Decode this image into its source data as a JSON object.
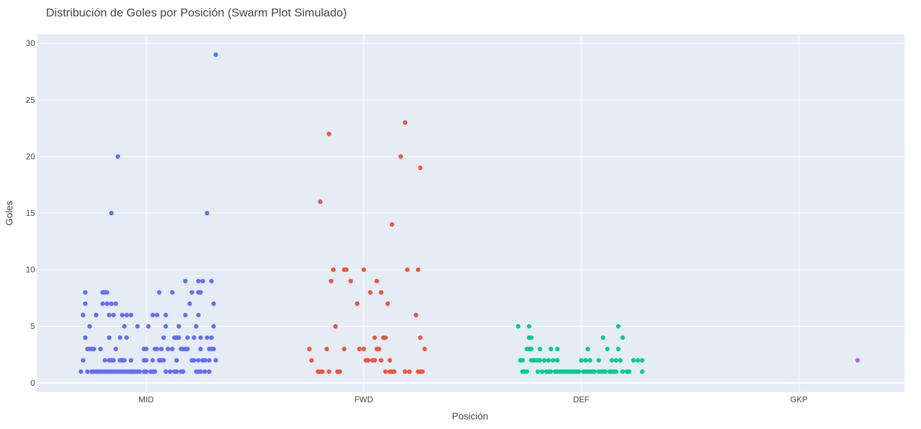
{
  "chart_data": {
    "type": "scatter",
    "title": "Distribución de Goles por Posición (Swarm Plot Simulado)",
    "xlabel": "Posición",
    "ylabel": "Goles",
    "categories": [
      "MID",
      "FWD",
      "DEF",
      "GKP"
    ],
    "ylim": [
      -0.8,
      30.8
    ],
    "yticks": [
      0,
      5,
      10,
      15,
      20,
      25,
      30
    ],
    "grid": true,
    "colors": {
      "MID": "#636efa",
      "FWD": "#ef553b",
      "DEF": "#00cc96",
      "GKP": "#ab63fa",
      "plot_bg": "#e5ecf6",
      "grid": "#ffffff"
    },
    "series": [
      {
        "name": "MID",
        "points": [
          [
            -0.3,
            1
          ],
          [
            -0.29,
            2
          ],
          [
            -0.29,
            6
          ],
          [
            -0.28,
            4
          ],
          [
            -0.28,
            7
          ],
          [
            -0.28,
            8
          ],
          [
            -0.27,
            3
          ],
          [
            -0.27,
            1
          ],
          [
            -0.26,
            5
          ],
          [
            -0.26,
            3
          ],
          [
            -0.25,
            1
          ],
          [
            -0.25,
            3
          ],
          [
            -0.24,
            3
          ],
          [
            -0.24,
            1
          ],
          [
            -0.23,
            6
          ],
          [
            -0.23,
            1
          ],
          [
            -0.22,
            1
          ],
          [
            -0.22,
            1
          ],
          [
            -0.21,
            1
          ],
          [
            -0.21,
            3
          ],
          [
            -0.2,
            8
          ],
          [
            -0.2,
            7
          ],
          [
            -0.2,
            1
          ],
          [
            -0.19,
            2
          ],
          [
            -0.19,
            1
          ],
          [
            -0.19,
            8
          ],
          [
            -0.18,
            8
          ],
          [
            -0.18,
            7
          ],
          [
            -0.18,
            1
          ],
          [
            -0.17,
            1
          ],
          [
            -0.17,
            2
          ],
          [
            -0.17,
            4
          ],
          [
            -0.17,
            6
          ],
          [
            -0.16,
            15
          ],
          [
            -0.16,
            7
          ],
          [
            -0.16,
            1
          ],
          [
            -0.16,
            2
          ],
          [
            -0.15,
            1
          ],
          [
            -0.15,
            6
          ],
          [
            -0.15,
            2
          ],
          [
            -0.14,
            7
          ],
          [
            -0.14,
            1
          ],
          [
            -0.14,
            3
          ],
          [
            -0.13,
            20
          ],
          [
            -0.13,
            1
          ],
          [
            -0.12,
            2
          ],
          [
            -0.12,
            4
          ],
          [
            -0.12,
            2
          ],
          [
            -0.12,
            1
          ],
          [
            -0.11,
            2
          ],
          [
            -0.11,
            1
          ],
          [
            -0.11,
            6
          ],
          [
            -0.11,
            2
          ],
          [
            -0.1,
            5
          ],
          [
            -0.1,
            1
          ],
          [
            -0.1,
            2
          ],
          [
            -0.09,
            1
          ],
          [
            -0.09,
            6
          ],
          [
            -0.09,
            4
          ],
          [
            -0.08,
            1
          ],
          [
            -0.07,
            1
          ],
          [
            -0.07,
            6
          ],
          [
            -0.07,
            2
          ],
          [
            -0.07,
            1
          ],
          [
            -0.06,
            1
          ],
          [
            -0.06,
            1
          ],
          [
            -0.05,
            1
          ],
          [
            -0.04,
            5
          ],
          [
            -0.04,
            1
          ],
          [
            -0.03,
            1
          ],
          [
            -0.01,
            1
          ],
          [
            -0.01,
            3
          ],
          [
            -0.01,
            2
          ],
          [
            0.0,
            1
          ],
          [
            0.0,
            2
          ],
          [
            0.0,
            3
          ],
          [
            0.01,
            5
          ],
          [
            0.02,
            1
          ],
          [
            0.03,
            6
          ],
          [
            0.03,
            2
          ],
          [
            0.03,
            1
          ],
          [
            0.04,
            3
          ],
          [
            0.04,
            1
          ],
          [
            0.05,
            3
          ],
          [
            0.05,
            6
          ],
          [
            0.06,
            2
          ],
          [
            0.06,
            8
          ],
          [
            0.06,
            2
          ],
          [
            0.07,
            3
          ],
          [
            0.07,
            2
          ],
          [
            0.08,
            4
          ],
          [
            0.08,
            2
          ],
          [
            0.09,
            1
          ],
          [
            0.09,
            6
          ],
          [
            0.09,
            5
          ],
          [
            0.1,
            3
          ],
          [
            0.11,
            1
          ],
          [
            0.12,
            8
          ],
          [
            0.12,
            3
          ],
          [
            0.13,
            4
          ],
          [
            0.13,
            1
          ],
          [
            0.14,
            1
          ],
          [
            0.14,
            2
          ],
          [
            0.14,
            2
          ],
          [
            0.14,
            4
          ],
          [
            0.15,
            5
          ],
          [
            0.15,
            4
          ],
          [
            0.16,
            3
          ],
          [
            0.16,
            1
          ],
          [
            0.17,
            1
          ],
          [
            0.17,
            3
          ],
          [
            0.18,
            3
          ],
          [
            0.18,
            9
          ],
          [
            0.18,
            6
          ],
          [
            0.19,
            4
          ],
          [
            0.19,
            3
          ],
          [
            0.2,
            7
          ],
          [
            0.21,
            8
          ],
          [
            0.21,
            2
          ],
          [
            0.22,
            4
          ],
          [
            0.22,
            2
          ],
          [
            0.23,
            1
          ],
          [
            0.23,
            5
          ],
          [
            0.24,
            9
          ],
          [
            0.24,
            8
          ],
          [
            0.24,
            1
          ],
          [
            0.24,
            2
          ],
          [
            0.24,
            6
          ],
          [
            0.25,
            8
          ],
          [
            0.25,
            1
          ],
          [
            0.25,
            4
          ],
          [
            0.25,
            3
          ],
          [
            0.26,
            2
          ],
          [
            0.26,
            9
          ],
          [
            0.27,
            1
          ],
          [
            0.27,
            2
          ],
          [
            0.27,
            2
          ],
          [
            0.28,
            15
          ],
          [
            0.28,
            4
          ],
          [
            0.29,
            1
          ],
          [
            0.29,
            3
          ],
          [
            0.29,
            2
          ],
          [
            0.3,
            9
          ],
          [
            0.3,
            3
          ],
          [
            0.3,
            4
          ],
          [
            0.31,
            7
          ],
          [
            0.31,
            5
          ],
          [
            0.31,
            3
          ],
          [
            0.32,
            29
          ],
          [
            0.32,
            2
          ]
        ]
      },
      {
        "name": "FWD",
        "points": [
          [
            -0.25,
            3
          ],
          [
            -0.24,
            2
          ],
          [
            -0.21,
            1
          ],
          [
            -0.2,
            16
          ],
          [
            -0.2,
            1
          ],
          [
            -0.19,
            1
          ],
          [
            -0.17,
            3
          ],
          [
            -0.16,
            1
          ],
          [
            -0.16,
            22
          ],
          [
            -0.15,
            9
          ],
          [
            -0.15,
            9
          ],
          [
            -0.14,
            10
          ],
          [
            -0.13,
            5
          ],
          [
            -0.12,
            1
          ],
          [
            -0.12,
            1
          ],
          [
            -0.11,
            1
          ],
          [
            -0.09,
            3
          ],
          [
            -0.09,
            10
          ],
          [
            -0.08,
            10
          ],
          [
            -0.06,
            9
          ],
          [
            -0.03,
            7
          ],
          [
            -0.02,
            3
          ],
          [
            0.0,
            10
          ],
          [
            0.0,
            3
          ],
          [
            0.01,
            2
          ],
          [
            0.02,
            2
          ],
          [
            0.03,
            8
          ],
          [
            0.04,
            2
          ],
          [
            0.05,
            2
          ],
          [
            0.05,
            4
          ],
          [
            0.06,
            3
          ],
          [
            0.06,
            9
          ],
          [
            0.07,
            3
          ],
          [
            0.08,
            2
          ],
          [
            0.08,
            8
          ],
          [
            0.09,
            4
          ],
          [
            0.1,
            4
          ],
          [
            0.1,
            1
          ],
          [
            0.11,
            7
          ],
          [
            0.12,
            2
          ],
          [
            0.12,
            1
          ],
          [
            0.13,
            14
          ],
          [
            0.13,
            1
          ],
          [
            0.14,
            1
          ],
          [
            0.17,
            20
          ],
          [
            0.19,
            1
          ],
          [
            0.19,
            23
          ],
          [
            0.2,
            10
          ],
          [
            0.21,
            1
          ],
          [
            0.24,
            6
          ],
          [
            0.25,
            1
          ],
          [
            0.25,
            10
          ],
          [
            0.26,
            1
          ],
          [
            0.26,
            19
          ],
          [
            0.26,
            4
          ],
          [
            0.27,
            1
          ],
          [
            0.28,
            3
          ]
        ]
      },
      {
        "name": "DEF",
        "points": [
          [
            -0.29,
            5
          ],
          [
            -0.28,
            2
          ],
          [
            -0.27,
            2
          ],
          [
            -0.27,
            1
          ],
          [
            -0.26,
            1
          ],
          [
            -0.25,
            3
          ],
          [
            -0.25,
            1
          ],
          [
            -0.24,
            3
          ],
          [
            -0.24,
            5
          ],
          [
            -0.24,
            4
          ],
          [
            -0.23,
            4
          ],
          [
            -0.23,
            3
          ],
          [
            -0.23,
            2
          ],
          [
            -0.22,
            2
          ],
          [
            -0.21,
            2
          ],
          [
            -0.2,
            1
          ],
          [
            -0.2,
            2
          ],
          [
            -0.19,
            3
          ],
          [
            -0.19,
            2
          ],
          [
            -0.18,
            1
          ],
          [
            -0.18,
            1
          ],
          [
            -0.17,
            2
          ],
          [
            -0.16,
            1
          ],
          [
            -0.15,
            1
          ],
          [
            -0.15,
            2
          ],
          [
            -0.14,
            3
          ],
          [
            -0.14,
            1
          ],
          [
            -0.13,
            2
          ],
          [
            -0.12,
            1
          ],
          [
            -0.12,
            1
          ],
          [
            -0.11,
            2
          ],
          [
            -0.11,
            1
          ],
          [
            -0.11,
            3
          ],
          [
            -0.1,
            1
          ],
          [
            -0.09,
            1
          ],
          [
            -0.08,
            1
          ],
          [
            -0.07,
            1
          ],
          [
            -0.06,
            1
          ],
          [
            -0.05,
            1
          ],
          [
            -0.04,
            1
          ],
          [
            -0.03,
            1
          ],
          [
            -0.02,
            1
          ],
          [
            -0.01,
            1
          ],
          [
            0.0,
            2
          ],
          [
            0.01,
            1
          ],
          [
            0.02,
            2
          ],
          [
            0.02,
            1
          ],
          [
            0.03,
            1
          ],
          [
            0.03,
            3
          ],
          [
            0.04,
            1
          ],
          [
            0.04,
            2
          ],
          [
            0.05,
            1
          ],
          [
            0.06,
            1
          ],
          [
            0.08,
            2
          ],
          [
            0.08,
            1
          ],
          [
            0.09,
            1
          ],
          [
            0.1,
            1
          ],
          [
            0.1,
            4
          ],
          [
            0.11,
            1
          ],
          [
            0.12,
            3
          ],
          [
            0.13,
            1
          ],
          [
            0.14,
            2
          ],
          [
            0.14,
            1
          ],
          [
            0.15,
            1
          ],
          [
            0.16,
            2
          ],
          [
            0.16,
            1
          ],
          [
            0.17,
            3
          ],
          [
            0.17,
            5
          ],
          [
            0.18,
            2
          ],
          [
            0.19,
            4
          ],
          [
            0.19,
            1
          ],
          [
            0.21,
            1
          ],
          [
            0.22,
            1
          ],
          [
            0.24,
            2
          ],
          [
            0.26,
            2
          ],
          [
            0.28,
            1
          ],
          [
            0.28,
            2
          ]
        ]
      },
      {
        "name": "GKP",
        "points": [
          [
            0.27,
            2
          ]
        ]
      }
    ]
  }
}
